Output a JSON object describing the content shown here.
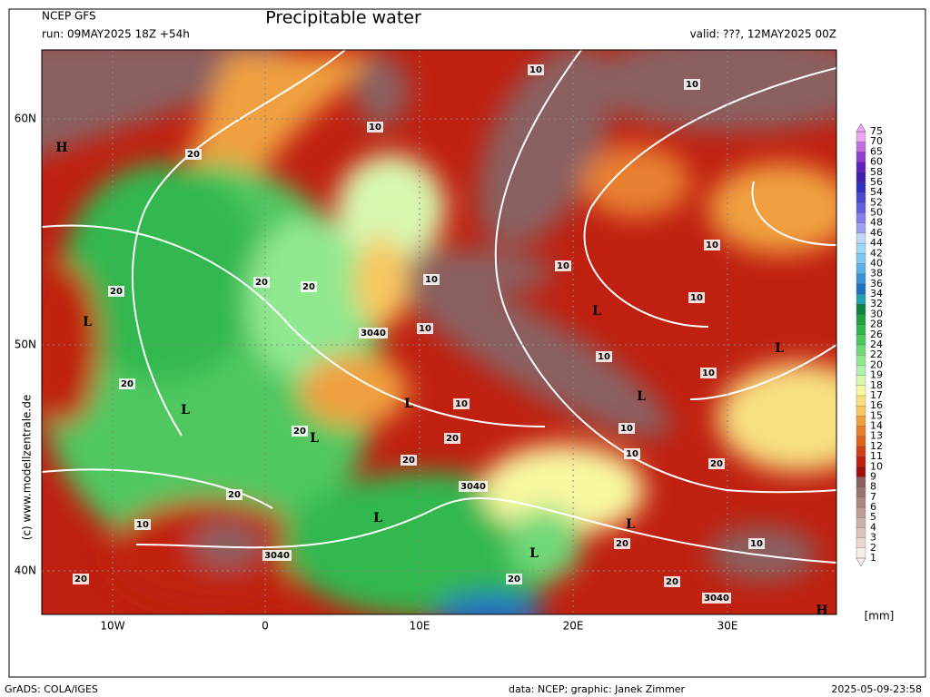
{
  "header": {
    "model": "NCEP GFS",
    "run": "run: 09MAY2025 18Z +54h",
    "title": "Precipitable water",
    "valid": "valid: ???, 12MAY2025 00Z"
  },
  "copyright": "(c) www.modellzentrale.de",
  "map": {
    "lat_labels": [
      "60N",
      "50N",
      "40N"
    ],
    "lon_labels": [
      "10W",
      "0",
      "10E",
      "20E",
      "30E"
    ],
    "labels": [
      "H",
      "H",
      "L",
      "L",
      "L",
      "L",
      "L",
      "L",
      "L",
      "L",
      "L",
      "L",
      "10",
      "10",
      "10",
      "10",
      "10",
      "10",
      "10",
      "10",
      "10",
      "10",
      "10",
      "10",
      "10",
      "10",
      "10",
      "20",
      "20",
      "20",
      "20",
      "20",
      "20",
      "20",
      "20",
      "20",
      "20",
      "20",
      "20",
      "20",
      "20",
      "3040",
      "3040",
      "3040",
      "3040"
    ]
  },
  "colorbar": {
    "unit": "[mm]",
    "levels": [
      75,
      70,
      65,
      60,
      58,
      56,
      54,
      52,
      50,
      48,
      46,
      44,
      42,
      40,
      38,
      36,
      34,
      32,
      30,
      28,
      26,
      24,
      22,
      20,
      19,
      18,
      17,
      16,
      15,
      14,
      13,
      12,
      11,
      10,
      9,
      8,
      7,
      6,
      5,
      4,
      3,
      2,
      1
    ],
    "colors": [
      "#e8a8f0",
      "#c070e0",
      "#9040d0",
      "#6020c0",
      "#4020b0",
      "#3030c0",
      "#4848d0",
      "#6060e0",
      "#8080e8",
      "#a0a0f0",
      "#c0d8f8",
      "#a0d8f8",
      "#80c8f0",
      "#60b0e8",
      "#4090d8",
      "#2070c0",
      "#20a0b0",
      "#108040",
      "#20a040",
      "#30b850",
      "#50c860",
      "#70d878",
      "#90e890",
      "#b0f0b0",
      "#d8f8b0",
      "#f8f8a0",
      "#f8e080",
      "#f8c860",
      "#f0a040",
      "#e88030",
      "#e06020",
      "#d04018",
      "#c02010",
      "#a01010",
      "#8a6060",
      "#9a7470",
      "#aa8880",
      "#bc9c94",
      "#ccb0a8",
      "#dcc4bc",
      "#ecd8d0",
      "#f8ece8"
    ]
  },
  "footer": {
    "software": "GrADS: COLA/IGES",
    "credit": "data: NCEP; graphic: Janek Zimmer",
    "timestamp": "2025-05-09-23:58"
  }
}
